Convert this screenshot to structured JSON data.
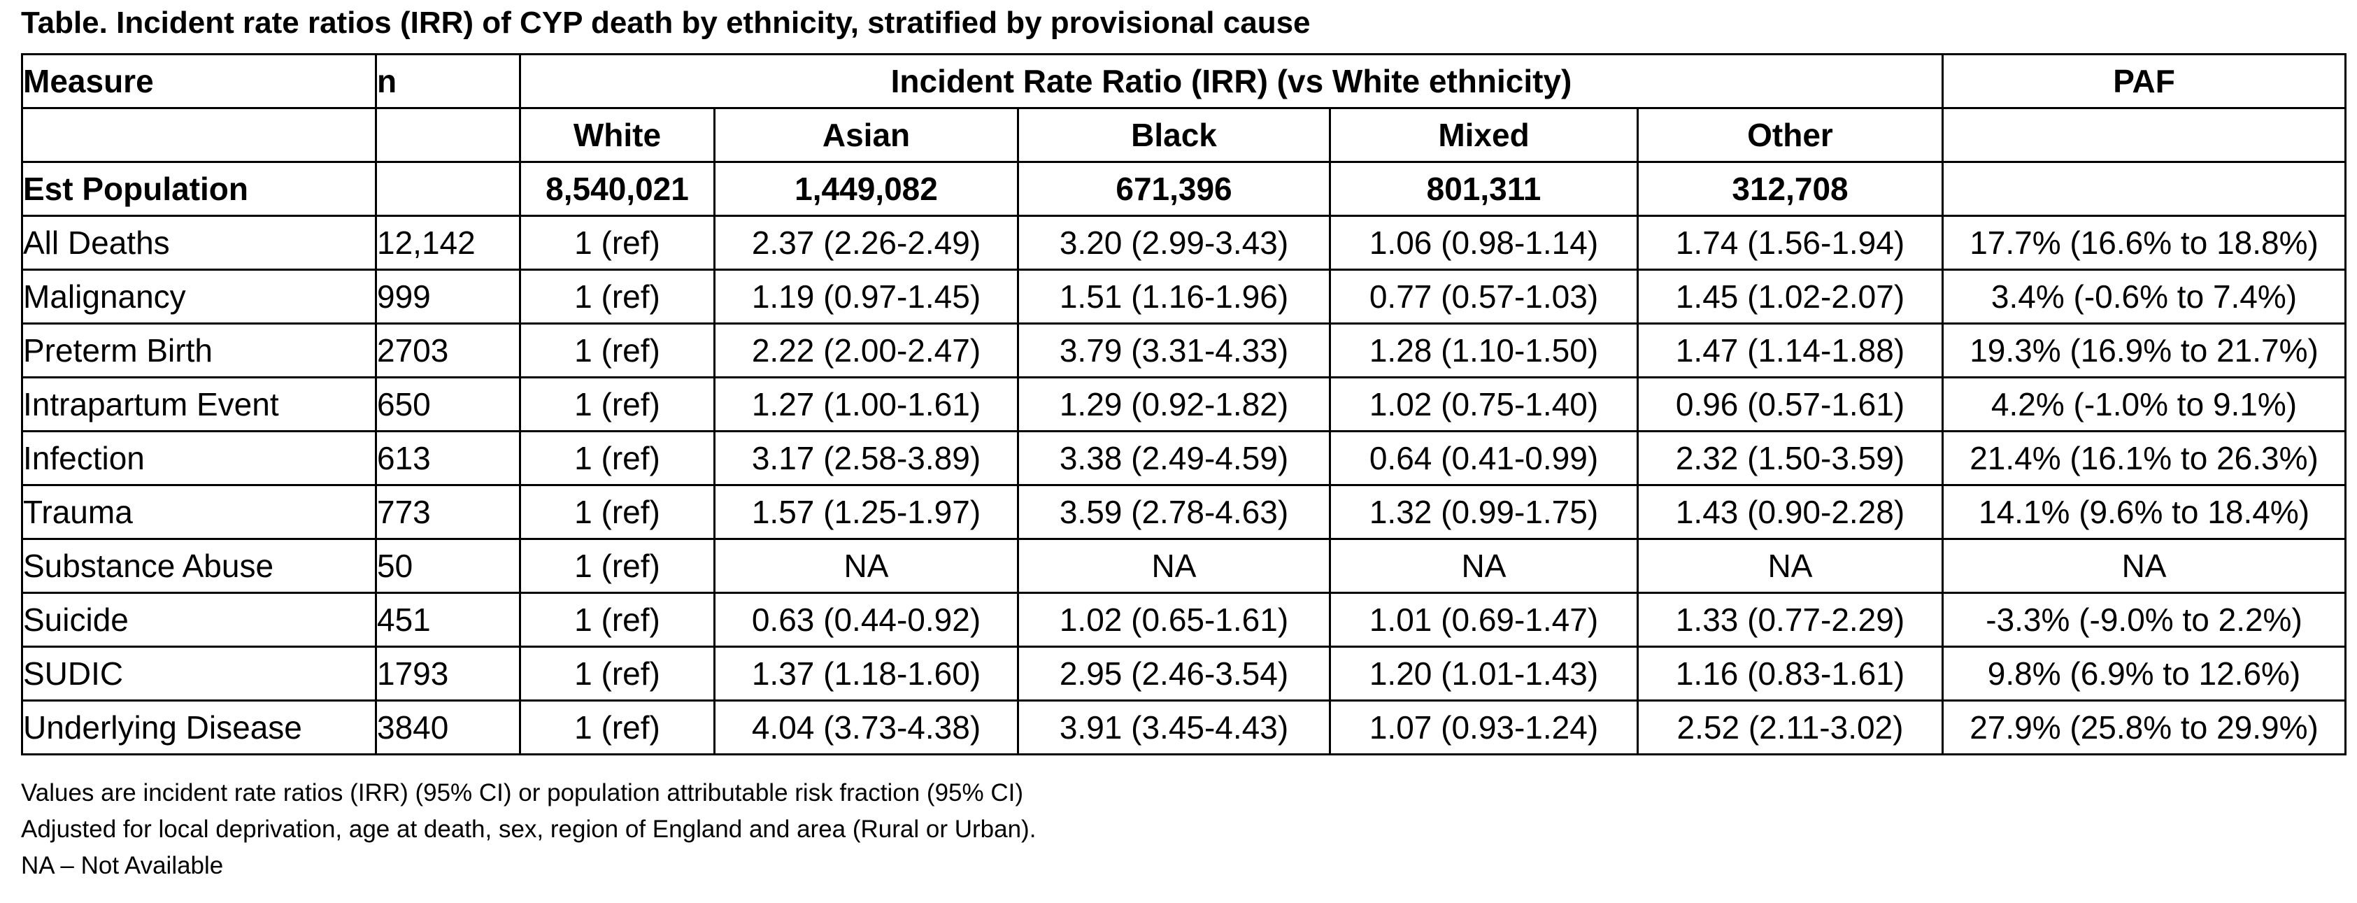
{
  "title": "Table. Incident rate ratios (IRR) of CYP death by ethnicity, stratified by provisional cause",
  "header": {
    "measure": "Measure",
    "n": "n",
    "irr_group": "Incident Rate Ratio (IRR) (vs White ethnicity)",
    "paf": "PAF",
    "ethnicities": [
      "White",
      "Asian",
      "Black",
      "Mixed",
      "Other"
    ]
  },
  "population": {
    "label": "Est Population",
    "values": [
      "8,540,021",
      "1,449,082",
      "671,396",
      "801,311",
      "312,708"
    ]
  },
  "rows": [
    {
      "measure": "All Deaths",
      "n": "12,142",
      "white": "1 (ref)",
      "asian": "2.37 (2.26-2.49)",
      "black": "3.20 (2.99-3.43)",
      "mixed": "1.06 (0.98-1.14)",
      "other": "1.74 (1.56-1.94)",
      "paf": "17.7% (16.6% to 18.8%)"
    },
    {
      "measure": "Malignancy",
      "n": "999",
      "white": "1 (ref)",
      "asian": "1.19 (0.97-1.45)",
      "black": "1.51 (1.16-1.96)",
      "mixed": "0.77 (0.57-1.03)",
      "other": "1.45 (1.02-2.07)",
      "paf": "3.4% (-0.6% to 7.4%)"
    },
    {
      "measure": "Preterm Birth",
      "n": "2703",
      "white": "1 (ref)",
      "asian": "2.22 (2.00-2.47)",
      "black": "3.79 (3.31-4.33)",
      "mixed": "1.28 (1.10-1.50)",
      "other": "1.47 (1.14-1.88)",
      "paf": "19.3% (16.9% to 21.7%)"
    },
    {
      "measure": "Intrapartum Event",
      "n": "650",
      "white": "1 (ref)",
      "asian": "1.27 (1.00-1.61)",
      "black": "1.29 (0.92-1.82)",
      "mixed": "1.02 (0.75-1.40)",
      "other": "0.96 (0.57-1.61)",
      "paf": "4.2% (-1.0% to 9.1%)"
    },
    {
      "measure": "Infection",
      "n": "613",
      "white": "1 (ref)",
      "asian": "3.17 (2.58-3.89)",
      "black": "3.38 (2.49-4.59)",
      "mixed": "0.64 (0.41-0.99)",
      "other": "2.32 (1.50-3.59)",
      "paf": "21.4% (16.1% to 26.3%)"
    },
    {
      "measure": "Trauma",
      "n": "773",
      "white": "1 (ref)",
      "asian": "1.57 (1.25-1.97)",
      "black": "3.59 (2.78-4.63)",
      "mixed": "1.32 (0.99-1.75)",
      "other": "1.43 (0.90-2.28)",
      "paf": "14.1% (9.6% to 18.4%)"
    },
    {
      "measure": "Substance Abuse",
      "n": "50",
      "white": "1 (ref)",
      "asian": "NA",
      "black": "NA",
      "mixed": "NA",
      "other": "NA",
      "paf": "NA"
    },
    {
      "measure": "Suicide",
      "n": "451",
      "white": "1 (ref)",
      "asian": "0.63 (0.44-0.92)",
      "black": "1.02 (0.65-1.61)",
      "mixed": "1.01 (0.69-1.47)",
      "other": "1.33 (0.77-2.29)",
      "paf": "-3.3% (-9.0% to 2.2%)"
    },
    {
      "measure": "SUDIC",
      "n": "1793",
      "white": "1 (ref)",
      "asian": "1.37 (1.18-1.60)",
      "black": "2.95 (2.46-3.54)",
      "mixed": "1.20 (1.01-1.43)",
      "other": "1.16 (0.83-1.61)",
      "paf": "9.8% (6.9% to 12.6%)"
    },
    {
      "measure": "Underlying Disease",
      "n": "3840",
      "white": "1 (ref)",
      "asian": "4.04 (3.73-4.38)",
      "black": "3.91 (3.45-4.43)",
      "mixed": "1.07 (0.93-1.24)",
      "other": "2.52 (2.11-3.02)",
      "paf": "27.9% (25.8% to 29.9%)"
    }
  ],
  "notes": [
    "Values are incident rate ratios (IRR) (95% CI) or population attributable risk fraction (95% CI)",
    "Adjusted for local deprivation, age at death, sex, region of England and area (Rural or Urban).",
    "NA – Not Available"
  ]
}
